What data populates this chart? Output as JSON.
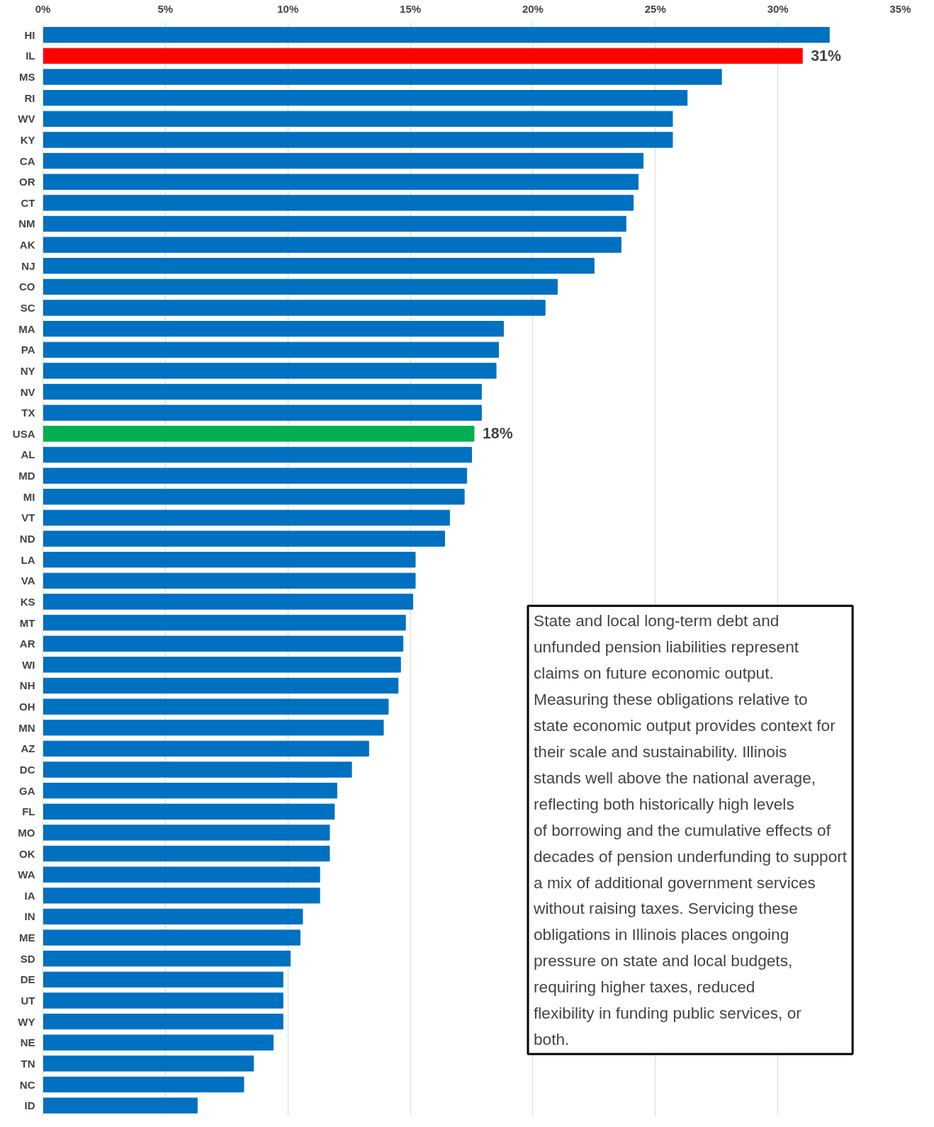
{
  "chart_data": {
    "type": "bar",
    "orientation": "horizontal",
    "categories": [
      "HI",
      "IL",
      "MS",
      "RI",
      "WV",
      "KY",
      "CA",
      "OR",
      "CT",
      "NM",
      "AK",
      "NJ",
      "CO",
      "SC",
      "MA",
      "PA",
      "NY",
      "NV",
      "TX",
      "USA",
      "AL",
      "MD",
      "MI",
      "VT",
      "ND",
      "LA",
      "VA",
      "KS",
      "MT",
      "AR",
      "WI",
      "NH",
      "OH",
      "MN",
      "AZ",
      "DC",
      "GA",
      "FL",
      "MO",
      "OK",
      "WA",
      "IA",
      "IN",
      "ME",
      "SD",
      "DE",
      "UT",
      "WY",
      "NE",
      "TN",
      "NC",
      "ID"
    ],
    "values": [
      32.1,
      31,
      27.7,
      26.3,
      25.7,
      25.7,
      24.5,
      24.3,
      24.1,
      23.8,
      23.6,
      22.5,
      21.0,
      20.5,
      18.8,
      18.6,
      18.5,
      17.9,
      17.9,
      17.6,
      17.5,
      17.3,
      17.2,
      16.6,
      16.4,
      15.2,
      15.2,
      15.1,
      14.8,
      14.7,
      14.6,
      14.5,
      14.1,
      13.9,
      13.3,
      12.6,
      12.0,
      11.9,
      11.7,
      11.7,
      11.3,
      11.3,
      10.6,
      10.5,
      10.1,
      9.8,
      9.8,
      9.8,
      9.4,
      8.6,
      8.2,
      6.3
    ],
    "colors": [
      "#0070c0",
      "#ff0000",
      "#0070c0",
      "#0070c0",
      "#0070c0",
      "#0070c0",
      "#0070c0",
      "#0070c0",
      "#0070c0",
      "#0070c0",
      "#0070c0",
      "#0070c0",
      "#0070c0",
      "#0070c0",
      "#0070c0",
      "#0070c0",
      "#0070c0",
      "#0070c0",
      "#0070c0",
      "#00b050",
      "#0070c0",
      "#0070c0",
      "#0070c0",
      "#0070c0",
      "#0070c0",
      "#0070c0",
      "#0070c0",
      "#0070c0",
      "#0070c0",
      "#0070c0",
      "#0070c0",
      "#0070c0",
      "#0070c0",
      "#0070c0",
      "#0070c0",
      "#0070c0",
      "#0070c0",
      "#0070c0",
      "#0070c0",
      "#0070c0",
      "#0070c0",
      "#0070c0",
      "#0070c0",
      "#0070c0",
      "#0070c0",
      "#0070c0",
      "#0070c0",
      "#0070c0",
      "#0070c0",
      "#0070c0",
      "#0070c0",
      "#0070c0"
    ],
    "value_labels": [
      null,
      "31%",
      null,
      null,
      null,
      null,
      null,
      null,
      null,
      null,
      null,
      null,
      null,
      null,
      null,
      null,
      null,
      null,
      null,
      "18%",
      null,
      null,
      null,
      null,
      null,
      null,
      null,
      null,
      null,
      null,
      null,
      null,
      null,
      null,
      null,
      null,
      null,
      null,
      null,
      null,
      null,
      null,
      null,
      null,
      null,
      null,
      null,
      null,
      null,
      null,
      null,
      null
    ],
    "xlim": [
      0,
      35
    ],
    "xticks": [
      {
        "value": 0,
        "label": "0%"
      },
      {
        "value": 5,
        "label": "5%"
      },
      {
        "value": 10,
        "label": "10%"
      },
      {
        "value": 15,
        "label": "15%"
      },
      {
        "value": 20,
        "label": "20%"
      },
      {
        "value": 25,
        "label": "25%"
      },
      {
        "value": 30,
        "label": "30%"
      },
      {
        "value": 35,
        "label": "35%"
      }
    ],
    "grid": "x",
    "annotations": [
      "State and local long-term debt and unfunded pension liabilities represent claims on future economic output. Measuring these obligations relative to state economic output provides context for their scale and sustainability. Illinois stands well above the national average, reflecting both historically high levels of borrowing and the cumulative effects of decades of pension underfunding to support a mix of additional government services without raising taxes. Servicing these obligations in Illinois places ongoing pressure on state and local budgets, requiring higher taxes, reduced flexibility in funding public services, or both."
    ]
  }
}
